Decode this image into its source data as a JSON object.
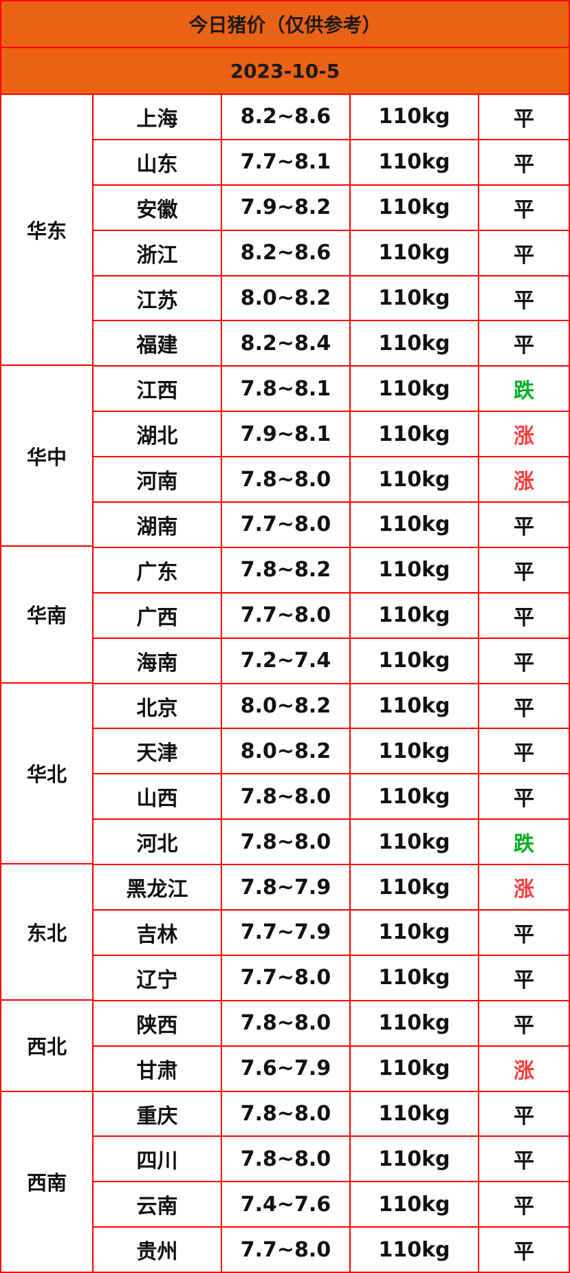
{
  "title": "今日猪价（仅供参考）",
  "date": "2023-10-5",
  "colors": {
    "header_bg": "#EA6214",
    "border": "#FF0000",
    "down": "#00B020",
    "up": "#FF3B3B",
    "flat": "#111111"
  },
  "regions": [
    {
      "name": "华东",
      "rows": [
        {
          "province": "上海",
          "price": "8.2~8.6",
          "weight": "110kg",
          "trend": "平"
        },
        {
          "province": "山东",
          "price": "7.7~8.1",
          "weight": "110kg",
          "trend": "平"
        },
        {
          "province": "安徽",
          "price": "7.9~8.2",
          "weight": "110kg",
          "trend": "平"
        },
        {
          "province": "浙江",
          "price": "8.2~8.6",
          "weight": "110kg",
          "trend": "平"
        },
        {
          "province": "江苏",
          "price": "8.0~8.2",
          "weight": "110kg",
          "trend": "平"
        },
        {
          "province": "福建",
          "price": "8.2~8.4",
          "weight": "110kg",
          "trend": "平"
        }
      ]
    },
    {
      "name": "华中",
      "rows": [
        {
          "province": "江西",
          "price": "7.8~8.1",
          "weight": "110kg",
          "trend": "跌"
        },
        {
          "province": "湖北",
          "price": "7.9~8.1",
          "weight": "110kg",
          "trend": "涨"
        },
        {
          "province": "河南",
          "price": "7.8~8.0",
          "weight": "110kg",
          "trend": "涨"
        },
        {
          "province": "湖南",
          "price": "7.7~8.0",
          "weight": "110kg",
          "trend": "平"
        }
      ]
    },
    {
      "name": "华南",
      "rows": [
        {
          "province": "广东",
          "price": "7.8~8.2",
          "weight": "110kg",
          "trend": "平"
        },
        {
          "province": "广西",
          "price": "7.7~8.0",
          "weight": "110kg",
          "trend": "平"
        },
        {
          "province": "海南",
          "price": "7.2~7.4",
          "weight": "110kg",
          "trend": "平"
        }
      ]
    },
    {
      "name": "华北",
      "rows": [
        {
          "province": "北京",
          "price": "8.0~8.2",
          "weight": "110kg",
          "trend": "平"
        },
        {
          "province": "天津",
          "price": "8.0~8.2",
          "weight": "110kg",
          "trend": "平"
        },
        {
          "province": "山西",
          "price": "7.8~8.0",
          "weight": "110kg",
          "trend": "平"
        },
        {
          "province": "河北",
          "price": "7.8~8.0",
          "weight": "110kg",
          "trend": "跌"
        }
      ]
    },
    {
      "name": "东北",
      "rows": [
        {
          "province": "黑龙江",
          "price": "7.8~7.9",
          "weight": "110kg",
          "trend": "涨"
        },
        {
          "province": "吉林",
          "price": "7.7~7.9",
          "weight": "110kg",
          "trend": "平"
        },
        {
          "province": "辽宁",
          "price": "7.7~8.0",
          "weight": "110kg",
          "trend": "平"
        }
      ]
    },
    {
      "name": "西北",
      "rows": [
        {
          "province": "陕西",
          "price": "7.8~8.0",
          "weight": "110kg",
          "trend": "平"
        },
        {
          "province": "甘肃",
          "price": "7.6~7.9",
          "weight": "110kg",
          "trend": "涨"
        }
      ]
    },
    {
      "name": "西南",
      "rows": [
        {
          "province": "重庆",
          "price": "7.8~8.0",
          "weight": "110kg",
          "trend": "平"
        },
        {
          "province": "四川",
          "price": "7.8~8.0",
          "weight": "110kg",
          "trend": "平"
        },
        {
          "province": "云南",
          "price": "7.4~7.6",
          "weight": "110kg",
          "trend": "平"
        },
        {
          "province": "贵州",
          "price": "7.7~8.0",
          "weight": "110kg",
          "trend": "平"
        }
      ]
    }
  ]
}
